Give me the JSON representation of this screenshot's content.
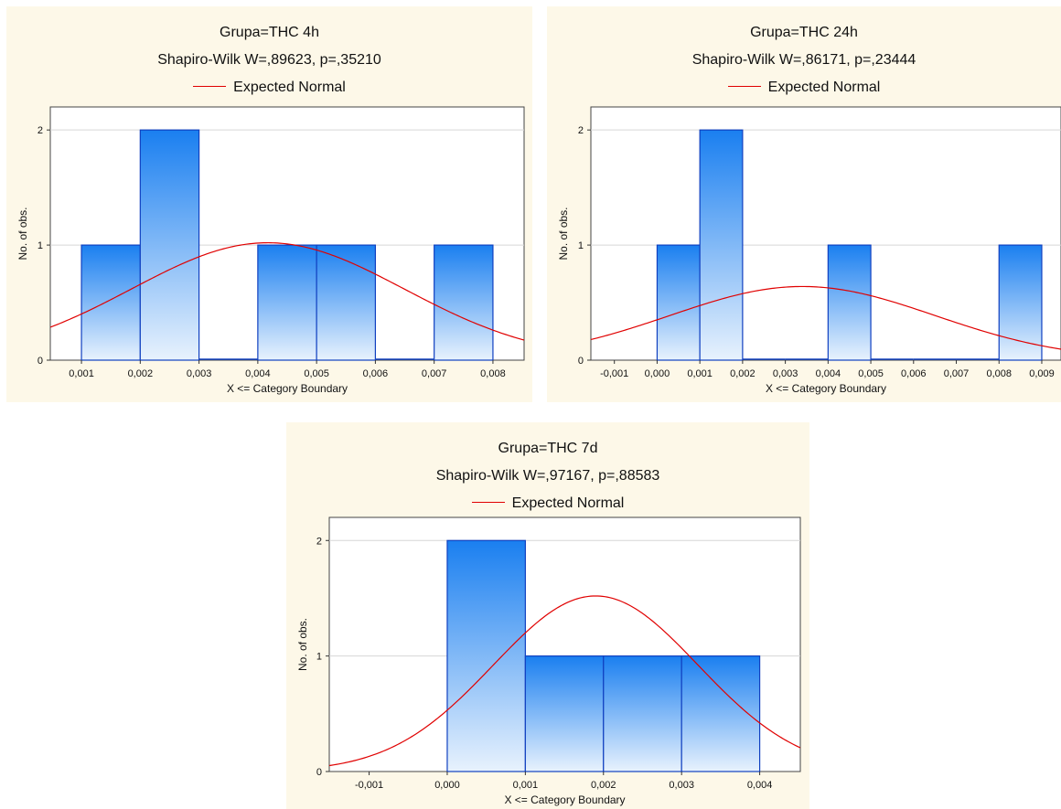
{
  "colors": {
    "panel_bg": "#fdf8e8",
    "bar_top": "#1a7ff0",
    "bar_bottom": "#e8f2fd",
    "bar_edge": "#1040c0",
    "curve": "#e00000",
    "grid": "#d6d6d6"
  },
  "chart_data": [
    {
      "type": "bar",
      "title": "Grupa=THC 4h",
      "subtitle": "Shapiro-Wilk W=,89623, p=,35210",
      "legend": "Expected Normal",
      "xlabel": "X <= Category Boundary",
      "ylabel": "No. of obs.",
      "xticks": [
        "0,001",
        "0,002",
        "0,003",
        "0,004",
        "0,005",
        "0,006",
        "0,007",
        "0,008"
      ],
      "yticks": [
        "0",
        "1",
        "2"
      ],
      "xlim": [
        0.00047,
        0.00853
      ],
      "ylim": [
        0,
        2.2
      ],
      "bins": [
        {
          "from": 0.001,
          "to": 0.002,
          "count": 1
        },
        {
          "from": 0.002,
          "to": 0.003,
          "count": 2
        },
        {
          "from": 0.003,
          "to": 0.004,
          "count": 0
        },
        {
          "from": 0.004,
          "to": 0.005,
          "count": 1
        },
        {
          "from": 0.005,
          "to": 0.006,
          "count": 1
        },
        {
          "from": 0.006,
          "to": 0.007,
          "count": 0
        },
        {
          "from": 0.007,
          "to": 0.008,
          "count": 1
        }
      ],
      "normal": {
        "mean": 0.00417,
        "sd": 0.00232,
        "peak": 1.02
      }
    },
    {
      "type": "bar",
      "title": "Grupa=THC 24h",
      "subtitle": "Shapiro-Wilk W=,86171, p=,23444",
      "legend": "Expected Normal",
      "xlabel": "X <= Category Boundary",
      "ylabel": "No. of obs.",
      "xticks": [
        "-0,001",
        "0,000",
        "0,001",
        "0,002",
        "0,003",
        "0,004",
        "0,005",
        "0,006",
        "0,007",
        "0,008",
        "0,009"
      ],
      "yticks": [
        "0",
        "1",
        "2"
      ],
      "xlim": [
        -0.00155,
        0.00945
      ],
      "ylim": [
        0,
        2.2
      ],
      "bins": [
        {
          "from": 0.0,
          "to": 0.001,
          "count": 1
        },
        {
          "from": 0.001,
          "to": 0.002,
          "count": 2
        },
        {
          "from": 0.002,
          "to": 0.003,
          "count": 0
        },
        {
          "from": 0.003,
          "to": 0.004,
          "count": 0
        },
        {
          "from": 0.004,
          "to": 0.005,
          "count": 1
        },
        {
          "from": 0.005,
          "to": 0.006,
          "count": 0
        },
        {
          "from": 0.006,
          "to": 0.007,
          "count": 0
        },
        {
          "from": 0.007,
          "to": 0.008,
          "count": 0
        },
        {
          "from": 0.008,
          "to": 0.009,
          "count": 1
        }
      ],
      "normal": {
        "mean": 0.0034,
        "sd": 0.0031,
        "peak": 0.64
      }
    },
    {
      "type": "bar",
      "title": "Grupa=THC 7d",
      "subtitle": "Shapiro-Wilk W=,97167, p=,88583",
      "legend": "Expected Normal",
      "xlabel": "X <= Category Boundary",
      "ylabel": "No. of obs.",
      "xticks": [
        "-0,001",
        "0,000",
        "0,001",
        "0,002",
        "0,003",
        "0,004"
      ],
      "yticks": [
        "0",
        "1",
        "2"
      ],
      "xlim": [
        -0.00151,
        0.00452
      ],
      "ylim": [
        0,
        2.2
      ],
      "bins": [
        {
          "from": 0.0,
          "to": 0.001,
          "count": 2
        },
        {
          "from": 0.001,
          "to": 0.002,
          "count": 1
        },
        {
          "from": 0.002,
          "to": 0.003,
          "count": 1
        },
        {
          "from": 0.003,
          "to": 0.004,
          "count": 1
        }
      ],
      "normal": {
        "mean": 0.0019,
        "sd": 0.00131,
        "peak": 1.52
      }
    }
  ]
}
